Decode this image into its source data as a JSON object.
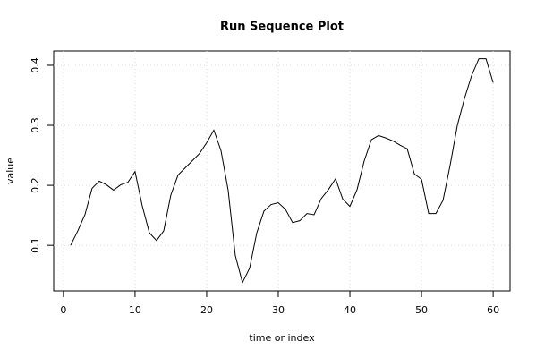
{
  "chart_data": {
    "type": "line",
    "title": "Run Sequence Plot",
    "x_label": "time or index",
    "y_label": "value",
    "x": [
      1,
      2,
      3,
      4,
      5,
      6,
      7,
      8,
      9,
      10,
      11,
      12,
      13,
      14,
      15,
      16,
      17,
      18,
      19,
      20,
      21,
      22,
      23,
      24,
      25,
      26,
      27,
      28,
      29,
      30,
      31,
      32,
      33,
      34,
      35,
      36,
      37,
      38,
      39,
      40,
      41,
      42,
      43,
      44,
      45,
      46,
      47,
      48,
      49,
      50,
      51,
      52,
      53,
      54,
      55,
      56,
      57,
      58,
      59,
      60
    ],
    "series": [
      {
        "name": "value",
        "color": "#000000",
        "values": [
          0.1,
          0.124,
          0.151,
          0.195,
          0.207,
          0.201,
          0.192,
          0.201,
          0.205,
          0.223,
          0.166,
          0.121,
          0.108,
          0.124,
          0.184,
          0.217,
          0.229,
          0.241,
          0.253,
          0.271,
          0.292,
          0.258,
          0.192,
          0.083,
          0.038,
          0.062,
          0.121,
          0.157,
          0.168,
          0.171,
          0.16,
          0.138,
          0.141,
          0.153,
          0.151,
          0.178,
          0.193,
          0.211,
          0.177,
          0.165,
          0.193,
          0.241,
          0.276,
          0.283,
          0.279,
          0.274,
          0.267,
          0.261,
          0.219,
          0.21,
          0.153,
          0.153,
          0.175,
          0.234,
          0.3,
          0.345,
          0.383,
          0.411,
          0.411,
          0.371
        ]
      }
    ],
    "xlim": [
      -1.36,
      62.36
    ],
    "ylim": [
      0.0242,
      0.4238
    ],
    "xticks": [
      0,
      10,
      20,
      30,
      40,
      50,
      60
    ],
    "yticks": [
      0.1,
      0.2,
      0.3,
      0.4
    ],
    "grid": true
  }
}
